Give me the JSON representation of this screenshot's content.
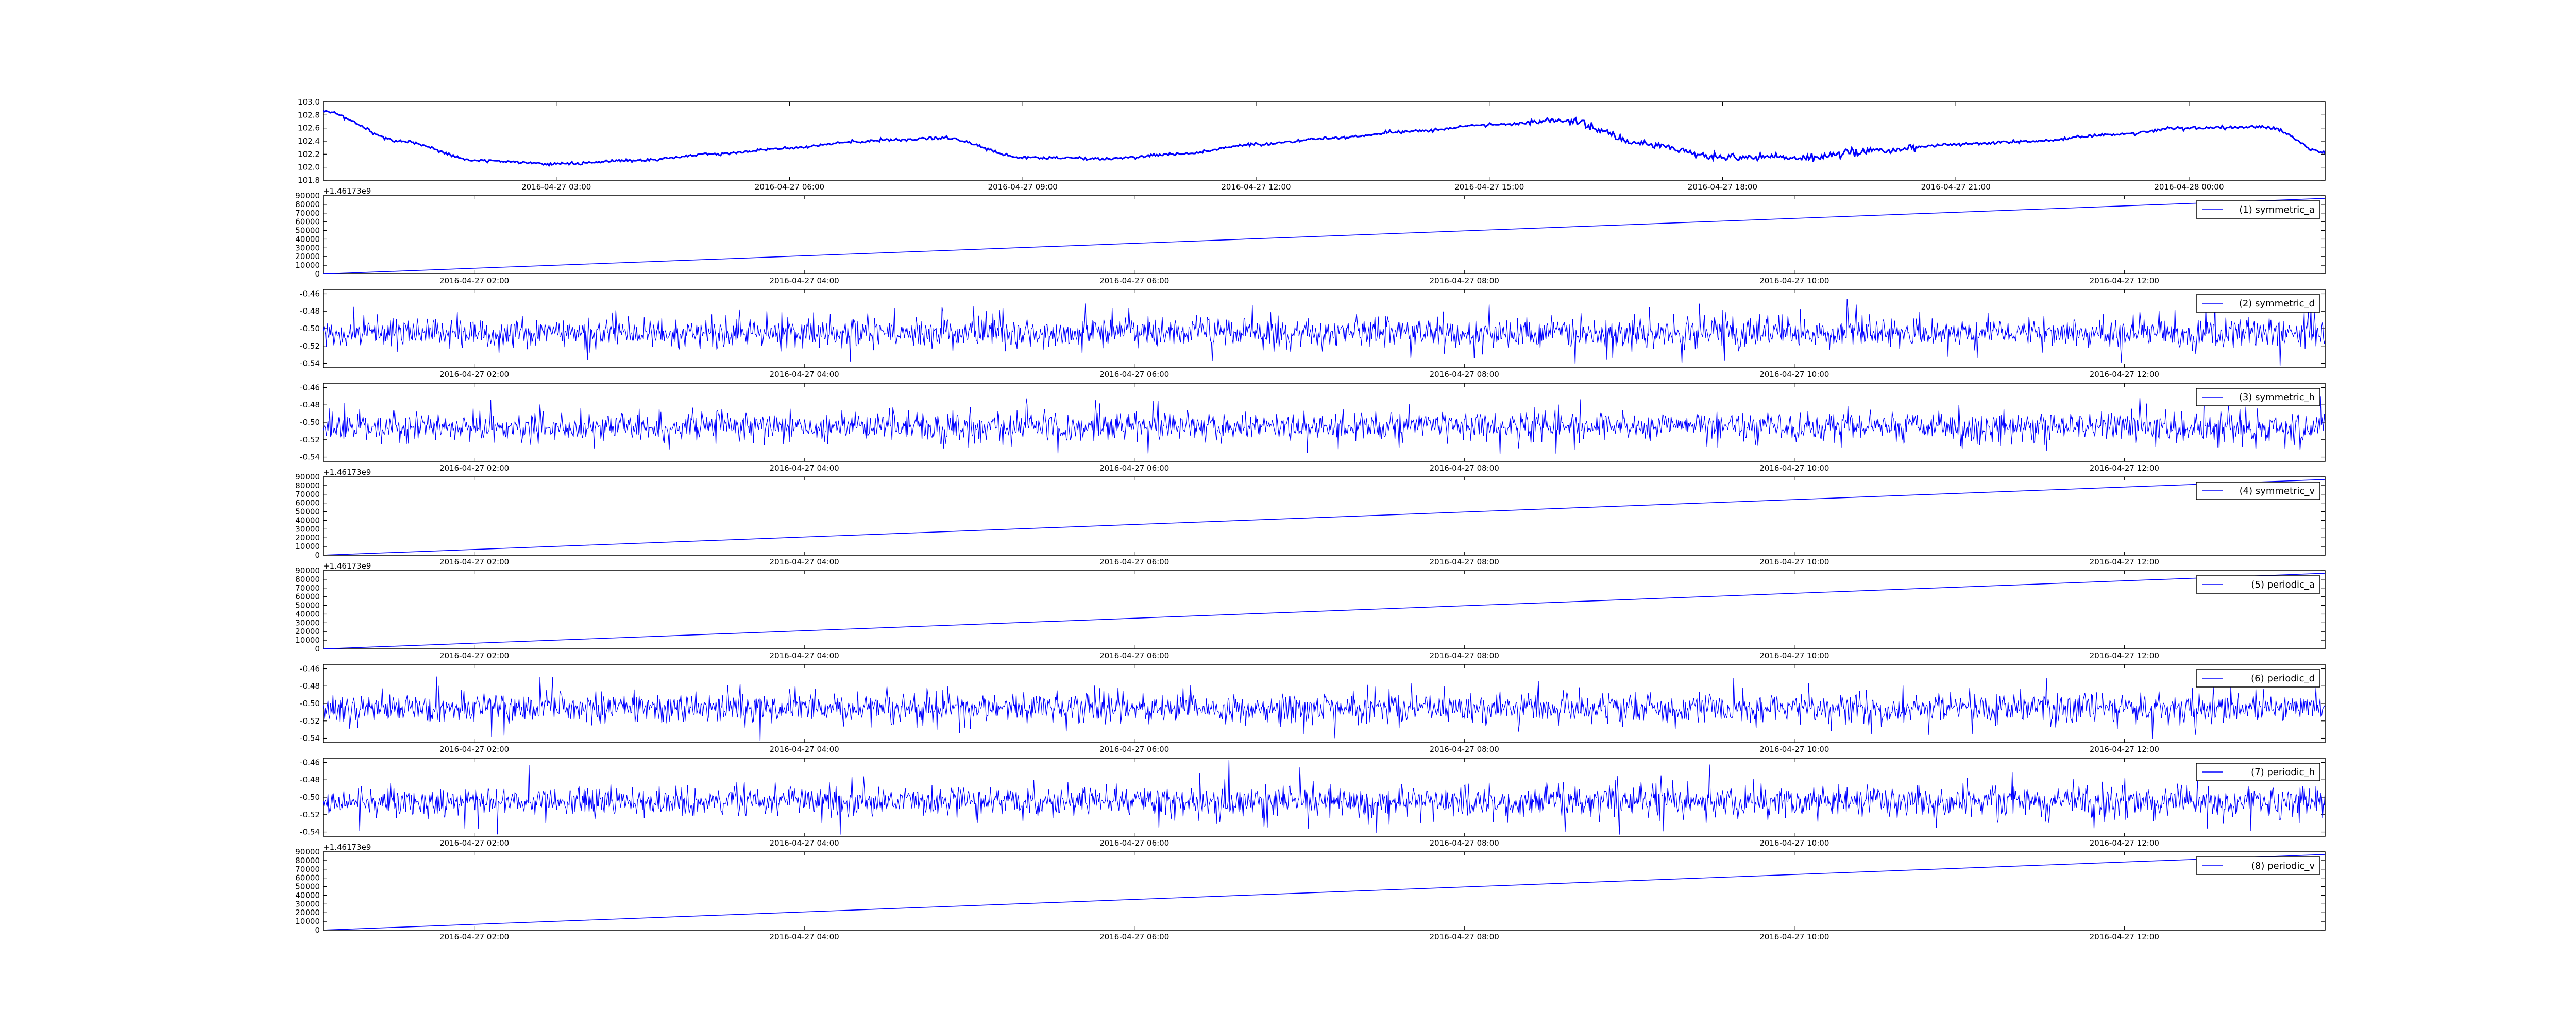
{
  "chart_data": [
    {
      "type": "line",
      "title": "",
      "xlabel": "",
      "ylabel": "",
      "x_tick_labels": [
        "2016-04-27 03:00",
        "2016-04-27 06:00",
        "2016-04-27 09:00",
        "2016-04-27 12:00",
        "2016-04-27 15:00",
        "2016-04-27 18:00",
        "2016-04-27 21:00",
        "2016-04-28 00:00"
      ],
      "y_tick_labels": [
        "101.8",
        "102.0",
        "102.2",
        "102.4",
        "102.6",
        "102.8",
        "103.0"
      ],
      "ylim": [
        101.8,
        103.0
      ],
      "y_offset_text": "",
      "legend": null,
      "series": [
        {
          "color": "#0000ff",
          "line_width": "thick",
          "x": [
            "2016-04-27 00:00",
            "2016-04-27 01:00",
            "2016-04-27 02:00",
            "2016-04-27 03:00",
            "2016-04-27 04:00",
            "2016-04-27 05:00",
            "2016-04-27 06:00",
            "2016-04-27 07:00",
            "2016-04-27 08:00",
            "2016-04-27 09:00",
            "2016-04-27 10:00",
            "2016-04-27 11:00",
            "2016-04-27 12:00",
            "2016-04-27 13:00",
            "2016-04-27 14:00",
            "2016-04-27 15:00",
            "2016-04-27 16:00",
            "2016-04-27 17:00",
            "2016-04-27 18:00",
            "2016-04-27 19:00",
            "2016-04-27 20:00",
            "2016-04-27 21:00",
            "2016-04-27 22:00",
            "2016-04-27 23:00",
            "2016-04-28 00:00",
            "2016-04-28 01:00",
            "2016-04-28 01:45"
          ],
          "values": [
            102.85,
            102.4,
            102.1,
            102.05,
            102.1,
            102.2,
            102.3,
            102.4,
            102.45,
            102.15,
            102.13,
            102.2,
            102.35,
            102.45,
            102.55,
            102.65,
            102.72,
            102.35,
            102.15,
            102.15,
            102.25,
            102.35,
            102.4,
            102.5,
            102.6,
            102.62,
            102.22
          ]
        }
      ]
    },
    {
      "type": "line",
      "title": "",
      "xlabel": "",
      "ylabel": "",
      "x_tick_labels": [
        "2016-04-27 02:00",
        "2016-04-27 04:00",
        "2016-04-27 06:00",
        "2016-04-27 08:00",
        "2016-04-27 10:00",
        "2016-04-27 12:00"
      ],
      "y_tick_labels": [
        "0",
        "10000",
        "20000",
        "30000",
        "40000",
        "50000",
        "60000",
        "70000",
        "80000",
        "90000"
      ],
      "ylim": [
        0,
        90000
      ],
      "y_offset_text": "+1.46173e9",
      "legend": {
        "label": "(1) symmetric_a",
        "position": "upper right"
      },
      "series": [
        {
          "name": "(1) symmetric_a",
          "color": "#0000ff",
          "x": [
            "2016-04-27 01:05",
            "2016-04-27 13:13"
          ],
          "values": [
            0,
            87000
          ]
        }
      ]
    },
    {
      "type": "line",
      "title": "",
      "xlabel": "",
      "ylabel": "",
      "x_tick_labels": [
        "2016-04-27 02:00",
        "2016-04-27 04:00",
        "2016-04-27 06:00",
        "2016-04-27 08:00",
        "2016-04-27 10:00",
        "2016-04-27 12:00"
      ],
      "y_tick_labels": [
        "-0.54",
        "-0.52",
        "-0.50",
        "-0.48",
        "-0.46"
      ],
      "ylim": [
        -0.545,
        -0.455
      ],
      "y_offset_text": "",
      "legend": {
        "label": "(2) symmetric_d",
        "position": "upper right"
      },
      "series": [
        {
          "name": "(2) symmetric_d",
          "color": "#0000ff",
          "pattern": "noise",
          "baseline": -0.505,
          "x": [
            "2016-04-27 01:05",
            "2016-04-27 13:13"
          ]
        }
      ]
    },
    {
      "type": "line",
      "title": "",
      "xlabel": "",
      "ylabel": "",
      "x_tick_labels": [
        "2016-04-27 02:00",
        "2016-04-27 04:00",
        "2016-04-27 06:00",
        "2016-04-27 08:00",
        "2016-04-27 10:00",
        "2016-04-27 12:00"
      ],
      "y_tick_labels": [
        "-0.54",
        "-0.52",
        "-0.50",
        "-0.48",
        "-0.46"
      ],
      "ylim": [
        -0.545,
        -0.455
      ],
      "y_offset_text": "",
      "legend": {
        "label": "(3) symmetric_h",
        "position": "upper right"
      },
      "series": [
        {
          "name": "(3) symmetric_h",
          "color": "#0000ff",
          "pattern": "noise",
          "baseline": -0.505,
          "x": [
            "2016-04-27 01:05",
            "2016-04-27 13:13"
          ]
        }
      ]
    },
    {
      "type": "line",
      "title": "",
      "xlabel": "",
      "ylabel": "",
      "x_tick_labels": [
        "2016-04-27 02:00",
        "2016-04-27 04:00",
        "2016-04-27 06:00",
        "2016-04-27 08:00",
        "2016-04-27 10:00",
        "2016-04-27 12:00"
      ],
      "y_tick_labels": [
        "0",
        "10000",
        "20000",
        "30000",
        "40000",
        "50000",
        "60000",
        "70000",
        "80000",
        "90000"
      ],
      "ylim": [
        0,
        90000
      ],
      "y_offset_text": "+1.46173e9",
      "legend": {
        "label": "(4) symmetric_v",
        "position": "upper right"
      },
      "series": [
        {
          "name": "(4) symmetric_v",
          "color": "#0000ff",
          "x": [
            "2016-04-27 01:05",
            "2016-04-27 13:13"
          ],
          "values": [
            0,
            87000
          ]
        }
      ]
    },
    {
      "type": "line",
      "title": "",
      "xlabel": "",
      "ylabel": "",
      "x_tick_labels": [
        "2016-04-27 02:00",
        "2016-04-27 04:00",
        "2016-04-27 06:00",
        "2016-04-27 08:00",
        "2016-04-27 10:00",
        "2016-04-27 12:00"
      ],
      "y_tick_labels": [
        "0",
        "10000",
        "20000",
        "30000",
        "40000",
        "50000",
        "60000",
        "70000",
        "80000",
        "90000"
      ],
      "ylim": [
        0,
        90000
      ],
      "y_offset_text": "+1.46173e9",
      "legend": {
        "label": "(5) periodic_a",
        "position": "upper right"
      },
      "series": [
        {
          "name": "(5) periodic_a",
          "color": "#0000ff",
          "x": [
            "2016-04-27 01:05",
            "2016-04-27 13:13"
          ],
          "values": [
            0,
            87000
          ]
        }
      ]
    },
    {
      "type": "line",
      "title": "",
      "xlabel": "",
      "ylabel": "",
      "x_tick_labels": [
        "2016-04-27 02:00",
        "2016-04-27 04:00",
        "2016-04-27 06:00",
        "2016-04-27 08:00",
        "2016-04-27 10:00",
        "2016-04-27 12:00"
      ],
      "y_tick_labels": [
        "-0.54",
        "-0.52",
        "-0.50",
        "-0.48",
        "-0.46"
      ],
      "ylim": [
        -0.545,
        -0.455
      ],
      "y_offset_text": "",
      "legend": {
        "label": "(6) periodic_d",
        "position": "upper right"
      },
      "series": [
        {
          "name": "(6) periodic_d",
          "color": "#0000ff",
          "pattern": "noise",
          "baseline": -0.505,
          "x": [
            "2016-04-27 01:05",
            "2016-04-27 13:13"
          ]
        }
      ]
    },
    {
      "type": "line",
      "title": "",
      "xlabel": "",
      "ylabel": "",
      "x_tick_labels": [
        "2016-04-27 02:00",
        "2016-04-27 04:00",
        "2016-04-27 06:00",
        "2016-04-27 08:00",
        "2016-04-27 10:00",
        "2016-04-27 12:00"
      ],
      "y_tick_labels": [
        "-0.54",
        "-0.52",
        "-0.50",
        "-0.48",
        "-0.46"
      ],
      "ylim": [
        -0.545,
        -0.455
      ],
      "y_offset_text": "",
      "legend": {
        "label": "(7) periodic_h",
        "position": "upper right"
      },
      "series": [
        {
          "name": "(7) periodic_h",
          "color": "#0000ff",
          "pattern": "noise",
          "baseline": -0.505,
          "x": [
            "2016-04-27 01:05",
            "2016-04-27 13:13"
          ]
        }
      ]
    },
    {
      "type": "line",
      "title": "",
      "xlabel": "",
      "ylabel": "",
      "x_tick_labels": [
        "2016-04-27 02:00",
        "2016-04-27 04:00",
        "2016-04-27 06:00",
        "2016-04-27 08:00",
        "2016-04-27 10:00",
        "2016-04-27 12:00"
      ],
      "y_tick_labels": [
        "0",
        "10000",
        "20000",
        "30000",
        "40000",
        "50000",
        "60000",
        "70000",
        "80000",
        "90000"
      ],
      "ylim": [
        0,
        90000
      ],
      "y_offset_text": "+1.46173e9",
      "legend": {
        "label": "(8) periodic_v",
        "position": "upper right"
      },
      "series": [
        {
          "name": "(8) periodic_v",
          "color": "#0000ff",
          "x": [
            "2016-04-27 01:05",
            "2016-04-27 13:13"
          ],
          "values": [
            0,
            87000
          ]
        }
      ]
    }
  ]
}
